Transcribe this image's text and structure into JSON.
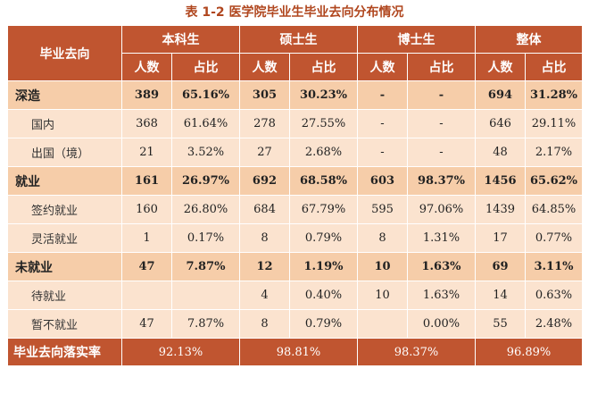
{
  "title": "表 1-2  医学院毕业生毕业去向分布情况",
  "header": {
    "row_label": "毕业去向",
    "groups": [
      "本科生",
      "硕士生",
      "博士生",
      "整体"
    ],
    "sub": [
      "人数",
      "占比"
    ]
  },
  "rows": [
    {
      "label": "深造",
      "main": true,
      "cells": [
        "389",
        "65.16%",
        "305",
        "30.23%",
        "-",
        "-",
        "694",
        "31.28%"
      ]
    },
    {
      "label": "国内",
      "main": false,
      "cells": [
        "368",
        "61.64%",
        "278",
        "27.55%",
        "-",
        "-",
        "646",
        "29.11%"
      ]
    },
    {
      "label": "出国（境）",
      "main": false,
      "cells": [
        "21",
        "3.52%",
        "27",
        "2.68%",
        "-",
        "-",
        "48",
        "2.17%"
      ]
    },
    {
      "label": "就业",
      "main": true,
      "cells": [
        "161",
        "26.97%",
        "692",
        "68.58%",
        "603",
        "98.37%",
        "1456",
        "65.62%"
      ]
    },
    {
      "label": "签约就业",
      "main": false,
      "cells": [
        "160",
        "26.80%",
        "684",
        "67.79%",
        "595",
        "97.06%",
        "1439",
        "64.85%"
      ]
    },
    {
      "label": "灵活就业",
      "main": false,
      "cells": [
        "1",
        "0.17%",
        "8",
        "0.79%",
        "8",
        "1.31%",
        "17",
        "0.77%"
      ]
    },
    {
      "label": "未就业",
      "main": true,
      "cells": [
        "47",
        "7.87%",
        "12",
        "1.19%",
        "10",
        "1.63%",
        "69",
        "3.11%"
      ]
    },
    {
      "label": "待就业",
      "main": false,
      "cells": [
        "",
        "",
        "4",
        "0.40%",
        "10",
        "1.63%",
        "14",
        "0.63%"
      ]
    },
    {
      "label": "暂不就业",
      "main": false,
      "cells": [
        "47",
        "7.87%",
        "8",
        "0.79%",
        "",
        "0.00%",
        "55",
        "2.48%"
      ]
    }
  ],
  "footer": {
    "label": "毕业去向落实率",
    "values": [
      "92.13%",
      "98.81%",
      "98.37%",
      "96.89%"
    ]
  }
}
